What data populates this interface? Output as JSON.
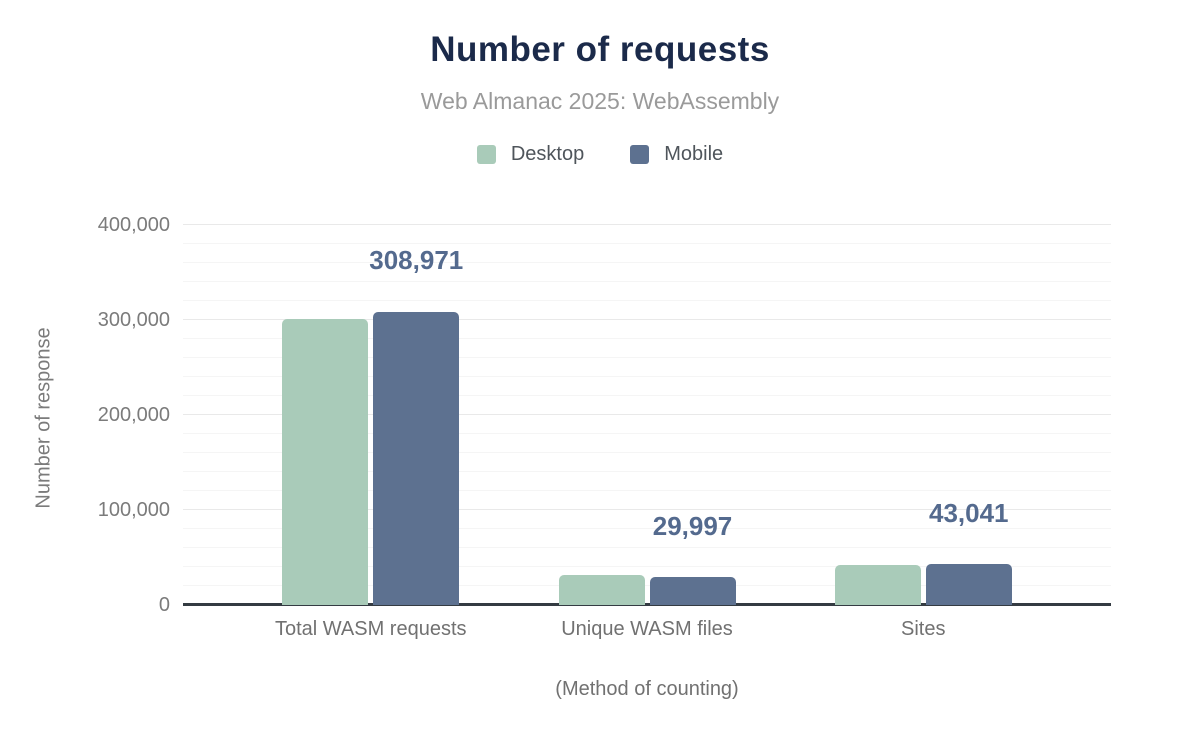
{
  "header": {
    "title": "Number of requests",
    "subtitle": "Web Almanac 2025: WebAssembly"
  },
  "chart_data": {
    "type": "bar",
    "title": "Number of requests",
    "subtitle": "Web Almanac 2025: WebAssembly",
    "categories": [
      "Total WASM requests",
      "Unique WASM files",
      "Sites"
    ],
    "series": [
      {
        "name": "Desktop",
        "color": "#a9cbb9",
        "values": [
          301000,
          31500,
          42000
        ],
        "values_estimated_from_pixels": true
      },
      {
        "name": "Mobile",
        "color": "#5d7190",
        "values": [
          308971,
          29997,
          43041
        ]
      }
    ],
    "value_labels": {
      "series": "Mobile",
      "labels": [
        "308,971",
        "29,997",
        "43,041"
      ]
    },
    "xlabel": "(Method of counting)",
    "ylabel": "Number of response",
    "ylim": [
      0,
      400000
    ],
    "y_ticks": [
      0,
      100000,
      200000,
      300000,
      400000
    ],
    "y_tick_labels": [
      "0",
      "100,000",
      "200,000",
      "300,000",
      "400,000"
    ],
    "minor_grid_step": 20000,
    "grid": true,
    "legend_position": "top"
  },
  "colors": {
    "title": "#1b2a4a",
    "subtitle": "#9a9a9a",
    "desktop": "#a9cbb9",
    "mobile": "#5d7190",
    "value_label": "#546a8e",
    "axis_text": "#7b7b7b",
    "category_text": "#717171",
    "major_grid": "#e9e9e9",
    "minor_grid": "#f5f5f5",
    "baseline": "#343b42"
  }
}
